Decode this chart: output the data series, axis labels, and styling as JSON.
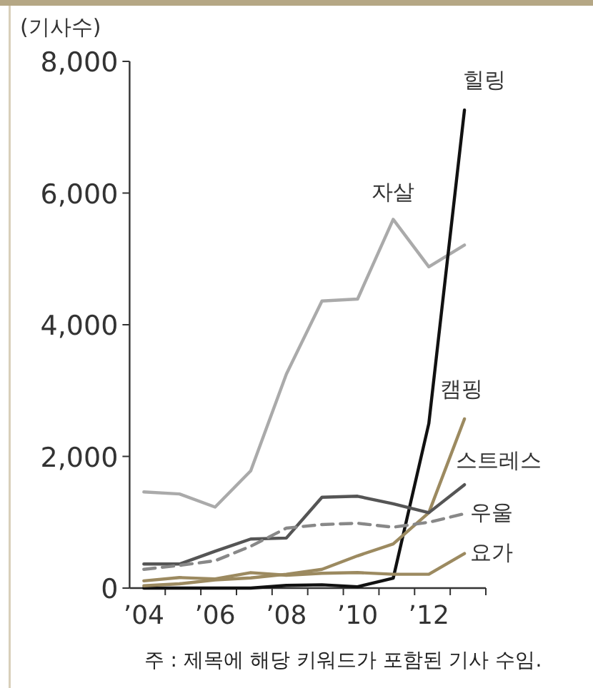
{
  "chart_data": {
    "type": "line",
    "ylabel": "(기사수)",
    "x": [
      2004,
      2005,
      2006,
      2007,
      2008,
      2009,
      2010,
      2011,
      2012,
      2013
    ],
    "series": [
      {
        "name": "자살",
        "color": "#aaaaaa",
        "values": [
          1460,
          1430,
          1230,
          1780,
          3250,
          4360,
          4390,
          5600,
          4880,
          5210
        ]
      },
      {
        "name": "힐링",
        "color": "#111111",
        "values": [
          0,
          0,
          0,
          0,
          40,
          50,
          20,
          150,
          2500,
          7260
        ]
      },
      {
        "name": "캠핑",
        "color": "#9c8a60",
        "values": [
          35,
          65,
          125,
          155,
          210,
          285,
          490,
          670,
          1145,
          2570
        ]
      },
      {
        "name": "스트레스",
        "color": "#555555",
        "values": [
          365,
          365,
          560,
          745,
          760,
          1380,
          1395,
          1280,
          1145,
          1570
        ]
      },
      {
        "name": "우울",
        "color": "#888888",
        "line_style": "dashed",
        "values": [
          285,
          345,
          415,
          635,
          910,
          965,
          985,
          925,
          1000,
          1130
        ]
      },
      {
        "name": "요가",
        "color": "#9c8a60",
        "values": [
          110,
          160,
          140,
          235,
          195,
          225,
          235,
          210,
          210,
          525
        ]
      }
    ],
    "xlim": [
      2003.6,
      2013.6
    ],
    "xticks": [
      {
        "value": 2004,
        "label": "’04"
      },
      {
        "value": 2006,
        "label": "’06"
      },
      {
        "value": 2008,
        "label": "’08"
      },
      {
        "value": 2010,
        "label": "’10"
      },
      {
        "value": 2012,
        "label": "’12"
      },
      {
        "value": 2004.6,
        "label": null
      },
      {
        "value": 2005.6,
        "label": null
      },
      {
        "value": 2006.6,
        "label": null
      },
      {
        "value": 2007.6,
        "label": null
      },
      {
        "value": 2008.6,
        "label": null
      },
      {
        "value": 2009.6,
        "label": null
      },
      {
        "value": 2010.6,
        "label": null
      },
      {
        "value": 2011.6,
        "label": null
      },
      {
        "value": 2012.6,
        "label": null
      },
      {
        "value": 2013.6,
        "label": null
      }
    ],
    "ylim": [
      0,
      8000
    ],
    "yticks": [
      0,
      {
        "value": 2000,
        "label": "2,000"
      },
      {
        "value": 4000,
        "label": "4,000"
      },
      {
        "value": 6000,
        "label": "6,000"
      },
      {
        "value": 8000,
        "label": "8,000"
      }
    ],
    "grid": false,
    "legend": false,
    "marker": "none",
    "annotations": [
      "주 : 제목에 해당 키워드가 포함된 기사 수임."
    ]
  }
}
